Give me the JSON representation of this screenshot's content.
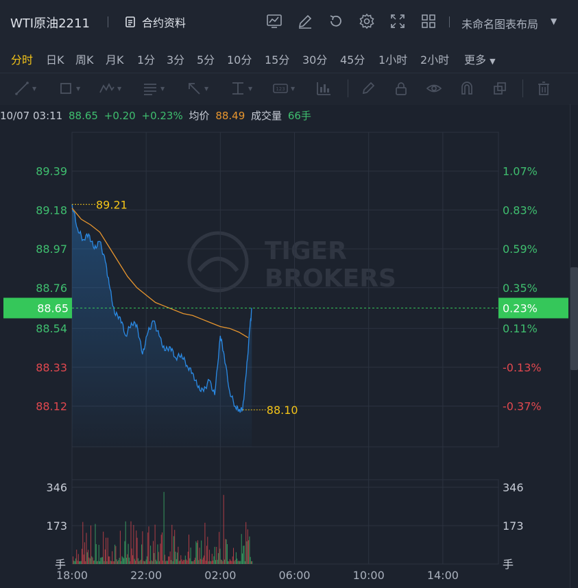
{
  "header": {
    "title": "WTI原油2211",
    "contract_label": "合约资料",
    "layout_label": "未命名图表布局",
    "icons": [
      "chart-icon",
      "edit-icon",
      "refresh-icon",
      "settings-icon",
      "fullscreen-icon",
      "grid-icon"
    ]
  },
  "periods": [
    {
      "label": "分时",
      "active": true
    },
    {
      "label": "日K",
      "active": false
    },
    {
      "label": "周K",
      "active": false
    },
    {
      "label": "月K",
      "active": false
    },
    {
      "label": "1分",
      "active": false
    },
    {
      "label": "3分",
      "active": false
    },
    {
      "label": "5分",
      "active": false
    },
    {
      "label": "10分",
      "active": false
    },
    {
      "label": "15分",
      "active": false
    },
    {
      "label": "30分",
      "active": false
    },
    {
      "label": "45分",
      "active": false
    },
    {
      "label": "1小时",
      "active": false
    },
    {
      "label": "2小时",
      "active": false
    },
    {
      "label": "更多",
      "active": false
    }
  ],
  "drawing_tools": [
    "line-tool-icon",
    "rect-tool-icon",
    "wave-tool-icon",
    "text-tool-icon",
    "arrow-tool-icon",
    "measure-tool-icon",
    "number-tool-icon",
    "indicator-tool-icon",
    "pen-icon",
    "lock-icon",
    "eye-icon",
    "magnet-icon",
    "layers-icon",
    "trash-icon"
  ],
  "info": {
    "datetime": "10/07 03:11",
    "price": "88.65",
    "change": "+0.20",
    "change_pct": "+0.23%",
    "avg_label": "均价",
    "avg_value": "88.49",
    "volume_label": "成交量",
    "volume_value": "66手"
  },
  "colors": {
    "up": "#3fbf6f",
    "down": "#e2484f",
    "price_line": "#2b8be6",
    "avg_line": "#e8962e",
    "annotation": "#f5c518",
    "current_tag": "#35c75a"
  },
  "chart_data": {
    "type": "line",
    "y_ticks_left": [
      "89.39",
      "89.18",
      "88.97",
      "88.76",
      "88.54",
      "88.33",
      "88.12"
    ],
    "y_ticks_right": [
      "1.07%",
      "0.83%",
      "0.59%",
      "0.35%",
      "0.11%",
      "-0.13%",
      "-0.37%"
    ],
    "y_tick_values": [
      89.39,
      89.18,
      88.97,
      88.76,
      88.54,
      88.33,
      88.12
    ],
    "ylim": [
      87.9,
      89.6
    ],
    "x_ticks": [
      "18:00",
      "22:00",
      "02:00",
      "06:00",
      "10:00",
      "14:00"
    ],
    "x_hours": [
      0,
      4,
      8,
      12,
      16,
      20
    ],
    "x_range_hours": [
      0,
      23
    ],
    "current": {
      "price": 88.65,
      "left_label": "88.65",
      "right_label": "0.23%"
    },
    "high": {
      "value": 89.21,
      "label": "89.21",
      "time_h": 0.0
    },
    "low": {
      "value": 88.1,
      "label": "88.10",
      "time_h": 9.2
    },
    "price_series": {
      "name": "price",
      "time_h": [
        0,
        0.3,
        0.6,
        0.9,
        1.2,
        1.5,
        1.8,
        2.0,
        2.3,
        2.6,
        2.9,
        3.2,
        3.5,
        3.8,
        4.1,
        4.4,
        4.7,
        5.0,
        5.3,
        5.6,
        5.9,
        6.2,
        6.5,
        6.8,
        7.1,
        7.4,
        7.7,
        8.0,
        8.2,
        8.5,
        8.8,
        9.0,
        9.2,
        9.4,
        9.6,
        9.7
      ],
      "price": [
        89.21,
        89.08,
        89.02,
        89.05,
        88.97,
        89.01,
        88.9,
        88.78,
        88.62,
        88.6,
        88.5,
        88.57,
        88.56,
        88.4,
        88.52,
        88.58,
        88.5,
        88.42,
        88.44,
        88.38,
        88.4,
        88.34,
        88.3,
        88.22,
        88.2,
        88.26,
        88.18,
        88.5,
        88.4,
        88.2,
        88.12,
        88.1,
        88.1,
        88.3,
        88.55,
        88.65
      ]
    },
    "avg_series": {
      "name": "avg",
      "time_h": [
        0,
        0.5,
        1.0,
        1.5,
        2.0,
        2.5,
        3.0,
        3.5,
        4.0,
        4.5,
        5.0,
        5.5,
        6.0,
        6.5,
        7.0,
        7.5,
        8.0,
        8.5,
        9.0,
        9.5
      ],
      "price": [
        89.19,
        89.13,
        89.1,
        89.06,
        88.98,
        88.9,
        88.82,
        88.76,
        88.72,
        88.68,
        88.66,
        88.64,
        88.62,
        88.61,
        88.59,
        88.57,
        88.55,
        88.54,
        88.52,
        88.49
      ]
    },
    "volume": {
      "y_ticks": [
        "346",
        "173"
      ],
      "y_tick_values": [
        346,
        173
      ],
      "unit_label": "手",
      "max": 380
    }
  }
}
